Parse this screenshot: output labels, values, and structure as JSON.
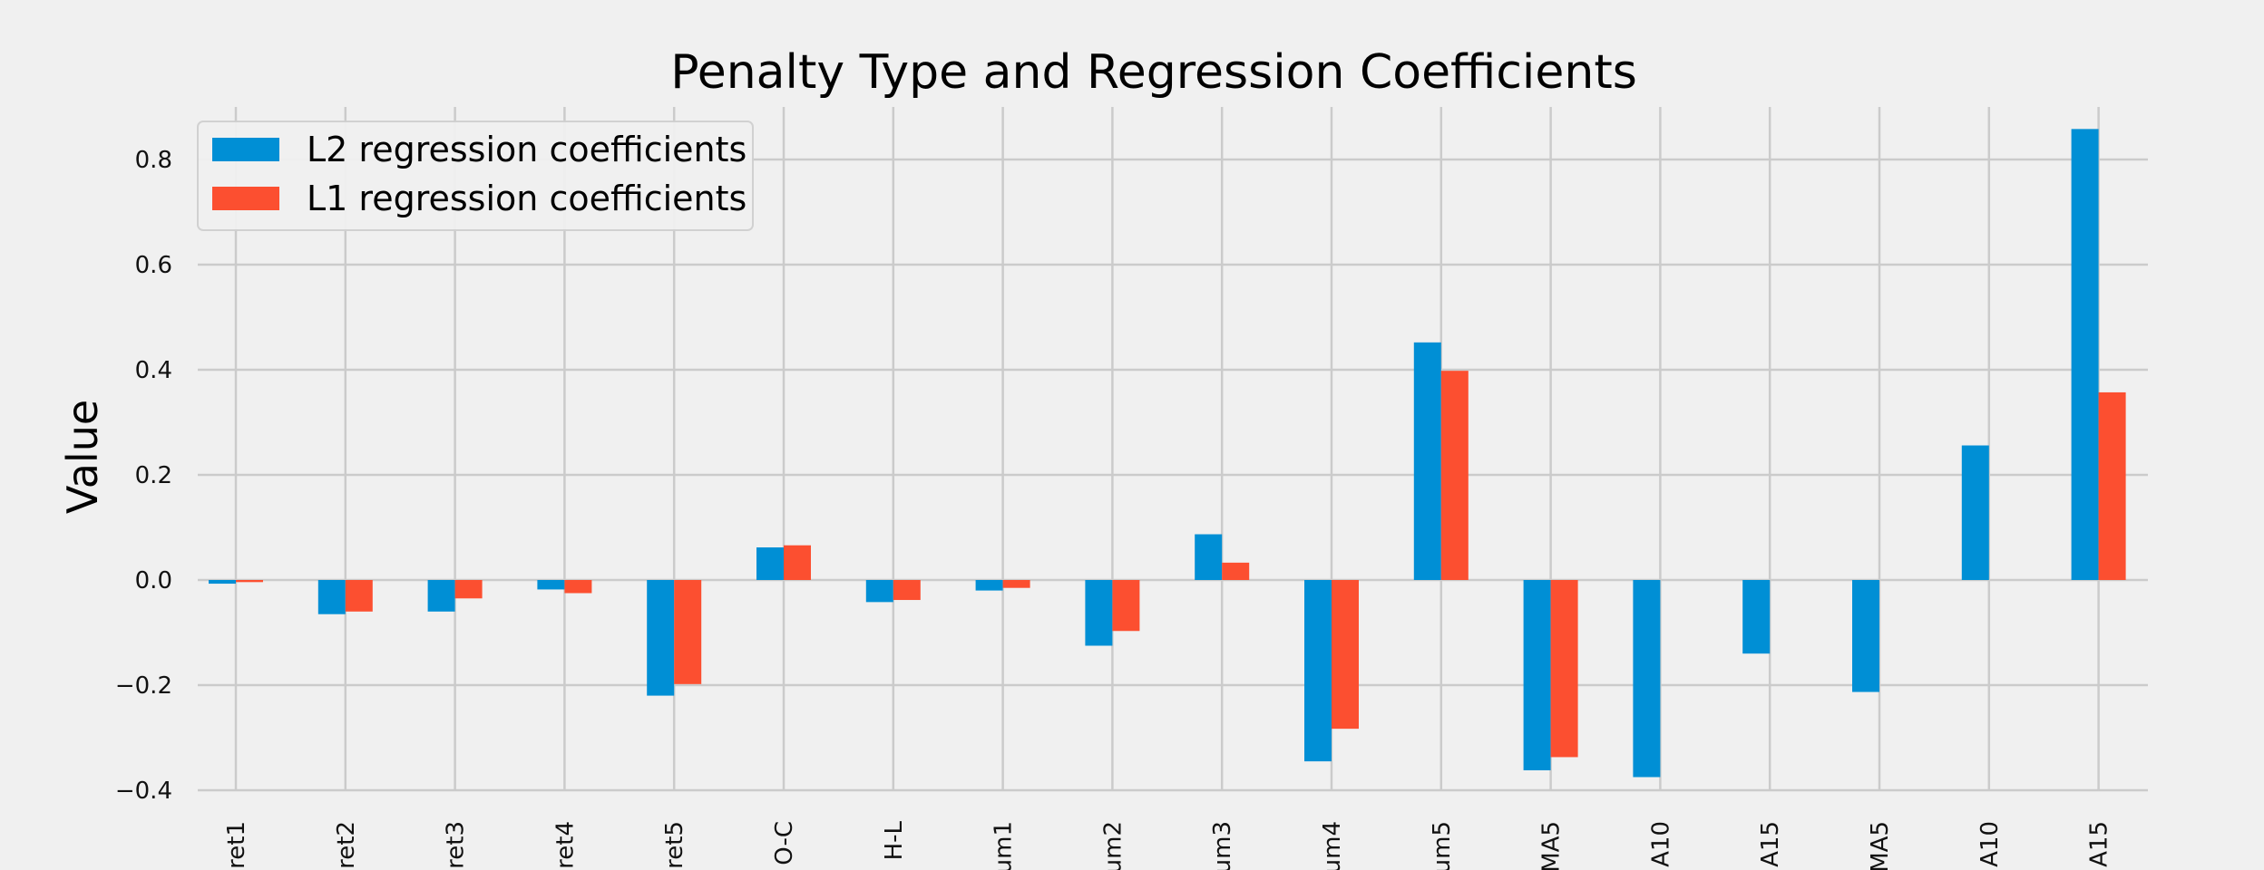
{
  "chart_data": {
    "type": "bar",
    "title": "Penalty Type and Regression Coefficients",
    "xlabel": "",
    "ylabel": "Value",
    "ylim": [
      -0.4,
      0.9
    ],
    "yticks": [
      -0.4,
      -0.2,
      0.0,
      0.2,
      0.4,
      0.6,
      0.8
    ],
    "ytick_labels": [
      "−0.4",
      "−0.2",
      "0.0",
      "0.2",
      "0.4",
      "0.6",
      "0.8"
    ],
    "grid": true,
    "legend_position": "top-left",
    "categories": [
      "ret1",
      "ret2",
      "ret3",
      "ret4",
      "ret5",
      "O-C",
      "H-L",
      "um1",
      "um2",
      "um3",
      "um4",
      "um5",
      "MA5",
      "A10",
      "A15",
      "MA5",
      "A10",
      "A15"
    ],
    "series": [
      {
        "name": "L2 regression coefficients",
        "color": "#008fd5",
        "values": [
          -0.007,
          -0.065,
          -0.06,
          -0.018,
          -0.22,
          0.062,
          -0.042,
          -0.02,
          -0.125,
          0.087,
          -0.345,
          0.452,
          -0.362,
          -0.375,
          -0.14,
          -0.213,
          0.256,
          0.858
        ]
      },
      {
        "name": "L1 regression coefficients",
        "color": "#fc4f30",
        "values": [
          -0.004,
          -0.06,
          -0.035,
          -0.025,
          -0.198,
          0.066,
          -0.038,
          -0.015,
          -0.097,
          0.033,
          -0.283,
          0.398,
          -0.337,
          0.0,
          0.0,
          0.0,
          0.0,
          0.357
        ]
      }
    ]
  }
}
